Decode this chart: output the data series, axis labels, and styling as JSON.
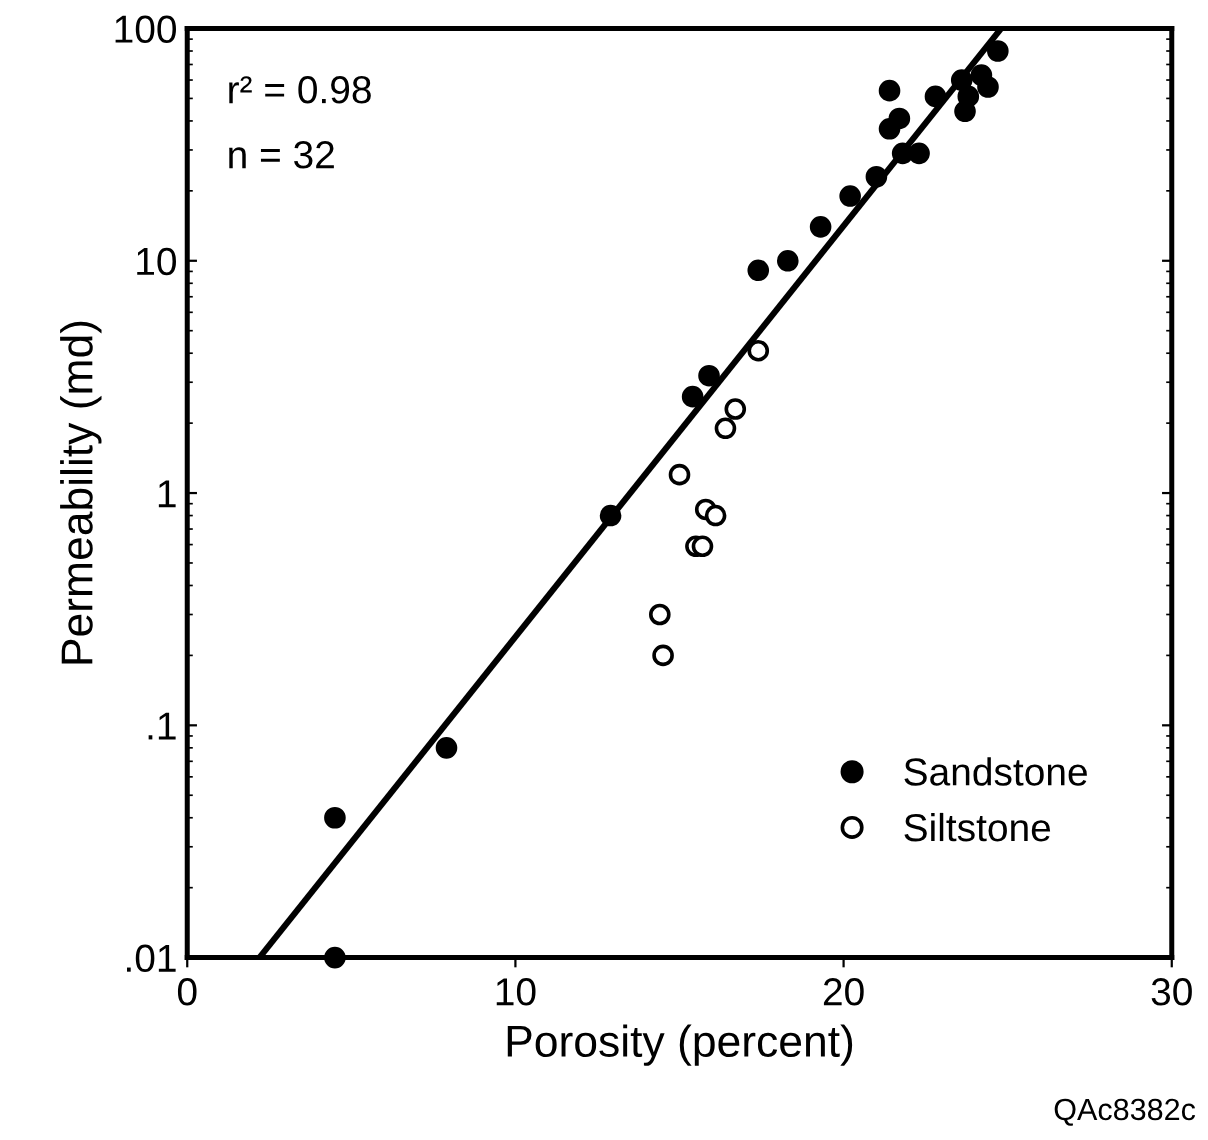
{
  "chart_data": {
    "type": "scatter",
    "xlabel": "Porosity (percent)",
    "ylabel": "Permeability (md)",
    "log": "y",
    "xlim": [
      0,
      30
    ],
    "xticks": [
      0,
      10,
      20,
      30
    ],
    "ylim": [
      0.01,
      100
    ],
    "yticks": [
      {
        "value": 0.01,
        "label": ".01"
      },
      {
        "value": 0.1,
        "label": ".1"
      },
      1,
      10,
      100
    ],
    "grid": false,
    "legend": "bottom right",
    "annotations": [
      "r² = 0.98",
      "n = 32",
      "QAc8382c"
    ],
    "series": [
      {
        "name": "Sandstone",
        "color": "#000000",
        "marker": "circle",
        "x": [
          4.5,
          4.5,
          7.9,
          12.9,
          15.4,
          15.9,
          17.4,
          18.3,
          19.3,
          20.2,
          21.0,
          21.4,
          21.7,
          21.4,
          21.8,
          22.3,
          22.8,
          23.7,
          23.6,
          23.8,
          24.4,
          24.7,
          24.2
        ],
        "values": [
          0.04,
          0.01,
          0.08,
          0.8,
          2.6,
          3.2,
          9.1,
          10,
          14,
          19,
          23,
          54,
          41,
          37,
          29,
          29,
          51,
          44,
          60,
          51,
          56,
          80,
          63
        ]
      },
      {
        "name": "Siltstone",
        "color": "#000000",
        "marker": "circle",
        "x": [
          17.4,
          16.7,
          16.4,
          15.0,
          15.8,
          16.1,
          15.5,
          15.7,
          14.4,
          14.5
        ],
        "values": [
          4.1,
          2.3,
          1.9,
          1.2,
          0.85,
          0.8,
          0.59,
          0.59,
          0.3,
          0.2
        ]
      },
      {
        "type": "line",
        "color": "#000000",
        "marker": "none",
        "x": [
          2.2,
          24.8
        ],
        "values": [
          0.01,
          100
        ]
      }
    ]
  }
}
